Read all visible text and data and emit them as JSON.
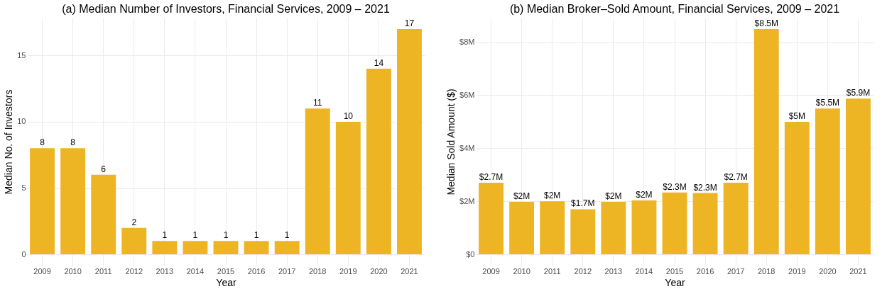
{
  "chart_data": [
    {
      "type": "bar",
      "title": "(a) Median Number of Investors, Financial Services, 2009 – 2021",
      "xlabel": "Year",
      "ylabel": "Median No. of Investors",
      "categories": [
        "2009",
        "2010",
        "2011",
        "2012",
        "2013",
        "2014",
        "2015",
        "2016",
        "2017",
        "2018",
        "2019",
        "2020",
        "2021"
      ],
      "values": [
        8,
        8,
        6,
        2,
        1,
        1,
        1,
        1,
        1,
        11,
        10,
        14,
        17
      ],
      "color": "#edb424",
      "ylim": [
        -0.85,
        17.85
      ],
      "yticks": [
        0,
        5,
        10,
        15
      ],
      "grid": true,
      "data_labels": true
    },
    {
      "type": "bar",
      "title": "(b) Median Broker–Sold Amount, Financial Services, 2009 – 2021",
      "xlabel": "Year",
      "ylabel": "Median Sold Amount ($)",
      "categories": [
        "2009",
        "2010",
        "2011",
        "2012",
        "2013",
        "2014",
        "2015",
        "2016",
        "2017",
        "2018",
        "2019",
        "2020",
        "2021"
      ],
      "values": [
        2700000,
        1980000,
        2000000,
        1700000,
        1980000,
        2030000,
        2330000,
        2310000,
        2700000,
        8500000,
        5000000,
        5500000,
        5870000
      ],
      "value_labels": [
        "$2.7M",
        "$2M",
        "$2M",
        "$1.7M",
        "$2M",
        "$2M",
        "$2.3M",
        "$2.3M",
        "$2.7M",
        "$8.5M",
        "$5M",
        "$5.5M",
        "$5.9M"
      ],
      "color": "#edb424",
      "ylim": [
        -425000,
        8925000
      ],
      "yticks": [
        {
          "value": 0,
          "label": "$0"
        },
        {
          "value": 2000000,
          "label": "$2M"
        },
        {
          "value": 4000000,
          "label": "$4M"
        },
        {
          "value": 6000000,
          "label": "$6M"
        },
        {
          "value": 8000000,
          "label": "$8M"
        }
      ],
      "grid": true
    }
  ]
}
